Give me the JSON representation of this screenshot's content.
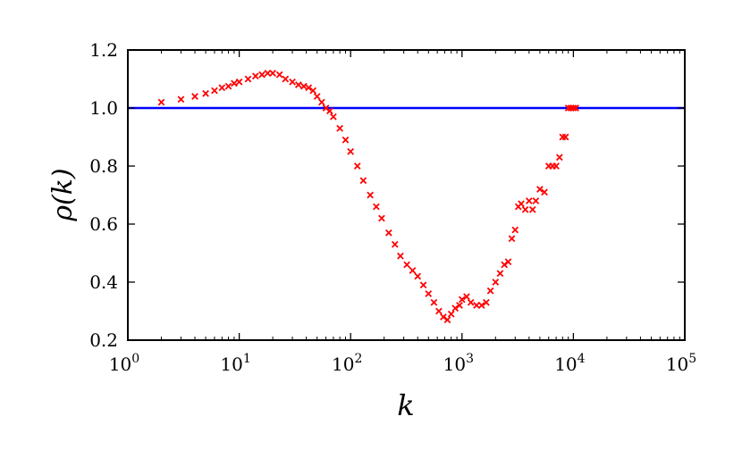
{
  "chart_data": {
    "type": "scatter",
    "title": "",
    "xlabel": "k",
    "ylabel": "ρ(k)",
    "xscale": "log",
    "xlim": [
      1,
      100000
    ],
    "ylim": [
      0.2,
      1.2
    ],
    "grid": false,
    "legend": "none",
    "colors": {
      "series": "#ff0000",
      "reference": "#0000ff"
    },
    "x_ticks": [
      {
        "value": 1,
        "base": "10",
        "exp": "0"
      },
      {
        "value": 10,
        "base": "10",
        "exp": "1"
      },
      {
        "value": 100,
        "base": "10",
        "exp": "2"
      },
      {
        "value": 1000,
        "base": "10",
        "exp": "3"
      },
      {
        "value": 10000,
        "base": "10",
        "exp": "4"
      },
      {
        "value": 100000,
        "base": "10",
        "exp": "5"
      }
    ],
    "y_ticks": [
      {
        "value": 0.2,
        "label": "0.2"
      },
      {
        "value": 0.4,
        "label": "0.4"
      },
      {
        "value": 0.6,
        "label": "0.6"
      },
      {
        "value": 0.8,
        "label": "0.8"
      },
      {
        "value": 1.0,
        "label": "1.0"
      },
      {
        "value": 1.2,
        "label": "1.2"
      }
    ],
    "reference_line": {
      "y": 1.0,
      "x_range": [
        1,
        100000
      ]
    },
    "series": [
      {
        "marker": "x",
        "x": [
          2,
          3,
          4,
          5,
          6,
          7,
          8,
          9,
          10,
          12,
          14,
          16,
          18,
          20,
          23,
          26,
          30,
          34,
          38,
          42,
          46,
          50,
          55,
          60,
          65,
          70,
          80,
          90,
          100,
          115,
          130,
          150,
          170,
          190,
          220,
          250,
          280,
          320,
          360,
          400,
          450,
          500,
          560,
          620,
          680,
          740,
          800,
          870,
          950,
          1000,
          1100,
          1200,
          1350,
          1500,
          1650,
          1800,
          2000,
          2200,
          2400,
          2600,
          2800,
          3000,
          3200,
          3400,
          3700,
          4000,
          4300,
          4600,
          5000,
          5500,
          6000,
          6500,
          7000,
          7500,
          8000,
          8500,
          9000,
          9500,
          10000,
          10500
        ],
        "y": [
          1.02,
          1.03,
          1.04,
          1.05,
          1.06,
          1.07,
          1.075,
          1.085,
          1.09,
          1.1,
          1.11,
          1.115,
          1.12,
          1.12,
          1.115,
          1.1,
          1.09,
          1.08,
          1.075,
          1.07,
          1.06,
          1.04,
          1.02,
          1.0,
          0.99,
          0.97,
          0.93,
          0.89,
          0.85,
          0.8,
          0.75,
          0.7,
          0.66,
          0.62,
          0.57,
          0.53,
          0.49,
          0.46,
          0.44,
          0.42,
          0.39,
          0.36,
          0.33,
          0.3,
          0.28,
          0.27,
          0.29,
          0.31,
          0.32,
          0.34,
          0.35,
          0.33,
          0.32,
          0.32,
          0.33,
          0.37,
          0.4,
          0.43,
          0.46,
          0.47,
          0.55,
          0.58,
          0.66,
          0.67,
          0.65,
          0.68,
          0.65,
          0.68,
          0.72,
          0.71,
          0.8,
          0.8,
          0.8,
          0.83,
          0.9,
          0.9,
          1.0,
          1.0,
          1.0,
          1.0
        ]
      }
    ]
  }
}
